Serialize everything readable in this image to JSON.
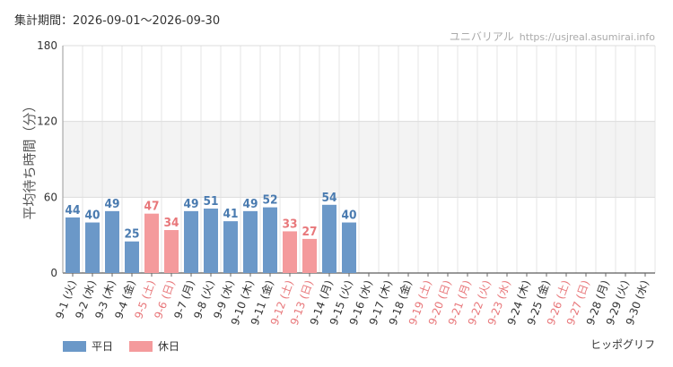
{
  "header": {
    "period": "集計期間：2026-09-01～2026-09-30",
    "source_name": "ユニバリアル",
    "source_url": "https://usjreal.asumirai.info"
  },
  "legend": {
    "weekday_label": "平日",
    "holiday_label": "休日"
  },
  "attraction_name": "ヒッポグリフ",
  "colors": {
    "weekday": "#6b98c8",
    "holiday": "#f49a9c",
    "weekday_text": "#4a7bb0",
    "holiday_text": "#e8777a",
    "axis_text": "#333333"
  },
  "chart_data": {
    "type": "bar",
    "ylabel": "平均待ち時間（分）",
    "ylim": [
      0,
      180
    ],
    "yticks": [
      0,
      60,
      120,
      180
    ],
    "grid": true,
    "legend_position": "bottom-left",
    "categories": [
      "9-1 (火)",
      "9-2 (水)",
      "9-3 (木)",
      "9-4 (金)",
      "9-5 (土)",
      "9-6 (日)",
      "9-7 (月)",
      "9-8 (火)",
      "9-9 (水)",
      "9-10 (木)",
      "9-11 (金)",
      "9-12 (土)",
      "9-13 (日)",
      "9-14 (月)",
      "9-15 (火)",
      "9-16 (水)",
      "9-17 (木)",
      "9-18 (金)",
      "9-19 (土)",
      "9-20 (日)",
      "9-21 (月)",
      "9-22 (火)",
      "9-23 (水)",
      "9-24 (木)",
      "9-25 (金)",
      "9-26 (土)",
      "9-27 (日)",
      "9-28 (月)",
      "9-29 (火)",
      "9-30 (水)"
    ],
    "holiday": [
      false,
      false,
      false,
      false,
      true,
      true,
      false,
      false,
      false,
      false,
      false,
      true,
      true,
      false,
      false,
      false,
      false,
      false,
      true,
      true,
      true,
      true,
      true,
      false,
      false,
      true,
      true,
      false,
      false,
      false
    ],
    "values": [
      44,
      40,
      49,
      25,
      47,
      34,
      49,
      51,
      41,
      49,
      52,
      33,
      27,
      54,
      40,
      null,
      null,
      null,
      null,
      null,
      null,
      null,
      null,
      null,
      null,
      null,
      null,
      null,
      null,
      null
    ]
  }
}
